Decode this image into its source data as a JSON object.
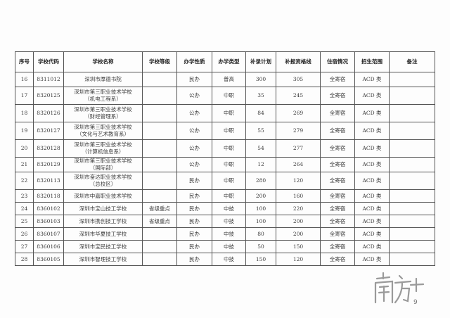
{
  "headers": [
    "序号",
    "学校代码",
    "学校名称",
    "学校等级",
    "办学性质",
    "办学类型",
    "补录计划",
    "补报资格线",
    "住宿情况",
    "招生范围",
    "备注"
  ],
  "rows": [
    {
      "no": "16",
      "code": "8311012",
      "name": "深圳市厚德书院",
      "name2": "",
      "level": "",
      "nature": "民办",
      "type": "普高",
      "plan": "300",
      "line": "305",
      "housing": "全寄宿",
      "scope": "ACD 类",
      "note": ""
    },
    {
      "no": "17",
      "code": "8320125",
      "name": "深圳市第三职业技术学校",
      "name2": "（机电工程系）",
      "level": "",
      "nature": "公办",
      "type": "中职",
      "plan": "35",
      "line": "245",
      "housing": "全寄宿",
      "scope": "ACD 类",
      "note": ""
    },
    {
      "no": "18",
      "code": "8320126",
      "name": "深圳市第三职业技术学校",
      "name2": "（财经管理系）",
      "level": "",
      "nature": "公办",
      "type": "中职",
      "plan": "84",
      "line": "269",
      "housing": "全寄宿",
      "scope": "ACD 类",
      "note": ""
    },
    {
      "no": "19",
      "code": "8320127",
      "name": "深圳市第三职业技术学校",
      "name2": "（文化与艺术教育系）",
      "level": "",
      "nature": "公办",
      "type": "中职",
      "plan": "55",
      "line": "279",
      "housing": "全寄宿",
      "scope": "ACD 类",
      "note": ""
    },
    {
      "no": "20",
      "code": "8320128",
      "name": "深圳市第三职业技术学校",
      "name2": "（计算机信息系）",
      "level": "",
      "nature": "公办",
      "type": "中职",
      "plan": "54",
      "line": "277",
      "housing": "全寄宿",
      "scope": "ACD 类",
      "note": ""
    },
    {
      "no": "21",
      "code": "8320129",
      "name": "深圳市第三职业技术学校",
      "name2": "（国际部）",
      "level": "",
      "nature": "公办",
      "type": "中职",
      "plan": "12",
      "line": "264",
      "housing": "全寄宿",
      "scope": "ACD 类",
      "note": ""
    },
    {
      "no": "22",
      "code": "8320113",
      "name": "深圳市奋达职业技术学校",
      "name2": "（总校区）",
      "level": "",
      "nature": "民办",
      "type": "中职",
      "plan": "280",
      "line": "120",
      "housing": "全寄宿",
      "scope": "ACD 类",
      "note": ""
    },
    {
      "no": "23",
      "code": "8320118",
      "name": "深圳市中嘉职业技术学校",
      "name2": "",
      "level": "",
      "nature": "民办",
      "type": "中职",
      "plan": "200",
      "line": "160",
      "housing": "全寄宿",
      "scope": "ACD 类",
      "note": ""
    },
    {
      "no": "24",
      "code": "8360102",
      "name": "深圳市宝山技工学校",
      "name2": "",
      "level": "省级重点",
      "nature": "民办",
      "type": "中技",
      "plan": "100",
      "line": "220",
      "housing": "全寄宿",
      "scope": "ACD 类",
      "note": ""
    },
    {
      "no": "25",
      "code": "8360103",
      "name": "深圳市携创技工学校",
      "name2": "",
      "level": "省级重点",
      "nature": "民办",
      "type": "中技",
      "plan": "100",
      "line": "200",
      "housing": "全寄宿",
      "scope": "ACD 类",
      "note": ""
    },
    {
      "no": "26",
      "code": "8360107",
      "name": "深圳市华夏技工学校",
      "name2": "",
      "level": "",
      "nature": "民办",
      "type": "中技",
      "plan": "80",
      "line": "200",
      "housing": "全寄宿",
      "scope": "ACD 类",
      "note": ""
    },
    {
      "no": "27",
      "code": "8360106",
      "name": "深圳市宝民技工学校",
      "name2": "",
      "level": "",
      "nature": "民办",
      "type": "中技",
      "plan": "50",
      "line": "150",
      "housing": "全寄宿",
      "scope": "ACD 类",
      "note": ""
    },
    {
      "no": "28",
      "code": "8360105",
      "name": "深圳市智理技工学校",
      "name2": "",
      "level": "",
      "nature": "民办",
      "type": "中技",
      "plan": "150",
      "line": "120",
      "housing": "全寄宿",
      "scope": "ACD 类",
      "note": ""
    }
  ],
  "watermark": {
    "text": "南方+",
    "color": "#9a9a9a"
  }
}
